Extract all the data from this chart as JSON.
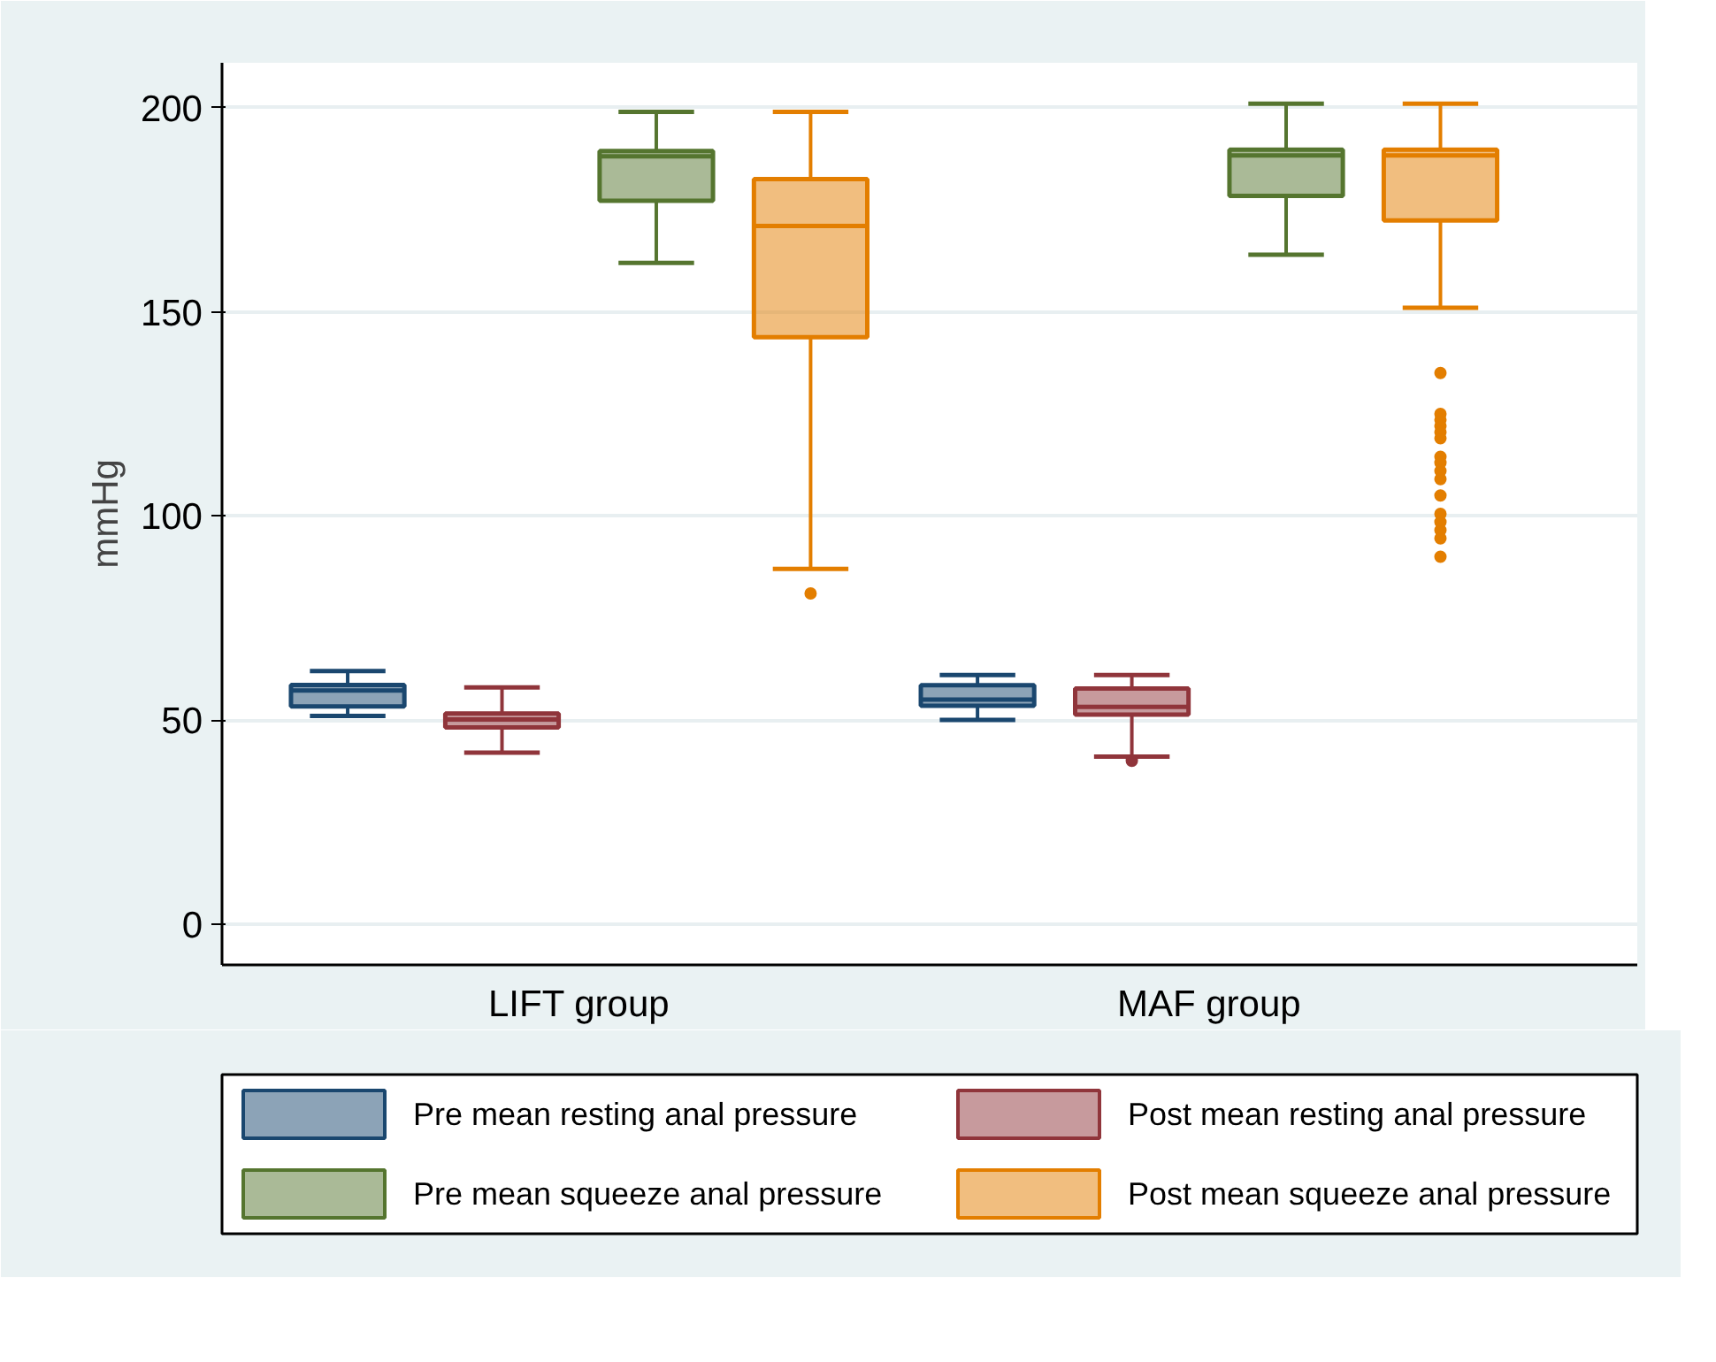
{
  "chart_data": {
    "type": "box",
    "ylabel": "mmHg",
    "categories": [
      "LIFT group",
      "MAF group"
    ],
    "ylim": [
      -10,
      211
    ],
    "yticks": [
      0,
      50,
      100,
      150,
      200
    ],
    "grid": "y",
    "legend": "bottom",
    "series": [
      {
        "name": "Pre mean resting anal pressure",
        "color": "#1a476f",
        "boxes": [
          {
            "low": 51,
            "q1": 53.3,
            "median": 57.2,
            "q3": 58.6,
            "high": 62
          },
          {
            "low": 50,
            "q1": 53.5,
            "median": 55,
            "q3": 58.5,
            "high": 61
          }
        ]
      },
      {
        "name": "Post mean resting anal pressure",
        "color": "#90353b",
        "boxes": [
          {
            "low": 42,
            "q1": 48.2,
            "median": 50.1,
            "q3": 51.6,
            "high": 58
          },
          {
            "low": 41,
            "q1": 51.3,
            "median": 53.2,
            "q3": 57.7,
            "high": 61,
            "outliers": [
              40
            ]
          }
        ]
      },
      {
        "name": "Pre mean squeeze anal pressure",
        "color": "#55752f",
        "boxes": [
          {
            "low": 162,
            "q1": 177.2,
            "median": 188.1,
            "q3": 189.4,
            "high": 199
          },
          {
            "low": 164,
            "q1": 178.4,
            "median": 188.3,
            "q3": 189.7,
            "high": 201
          }
        ]
      },
      {
        "name": "Post mean squeeze anal pressure",
        "color": "#e37e00",
        "boxes": [
          {
            "low": 87,
            "q1": 143.8,
            "median": 171,
            "q3": 182.5,
            "high": 199,
            "outliers": [
              81
            ]
          },
          {
            "low": 151,
            "q1": 172.4,
            "median": 188.3,
            "q3": 189.7,
            "high": 201,
            "outliers": [
              135,
              125,
              123.5,
              122,
              120.5,
              119,
              114.5,
              113,
              111,
              109,
              105,
              100.5,
              98.5,
              96.5,
              94.5,
              90
            ]
          }
        ]
      }
    ]
  }
}
